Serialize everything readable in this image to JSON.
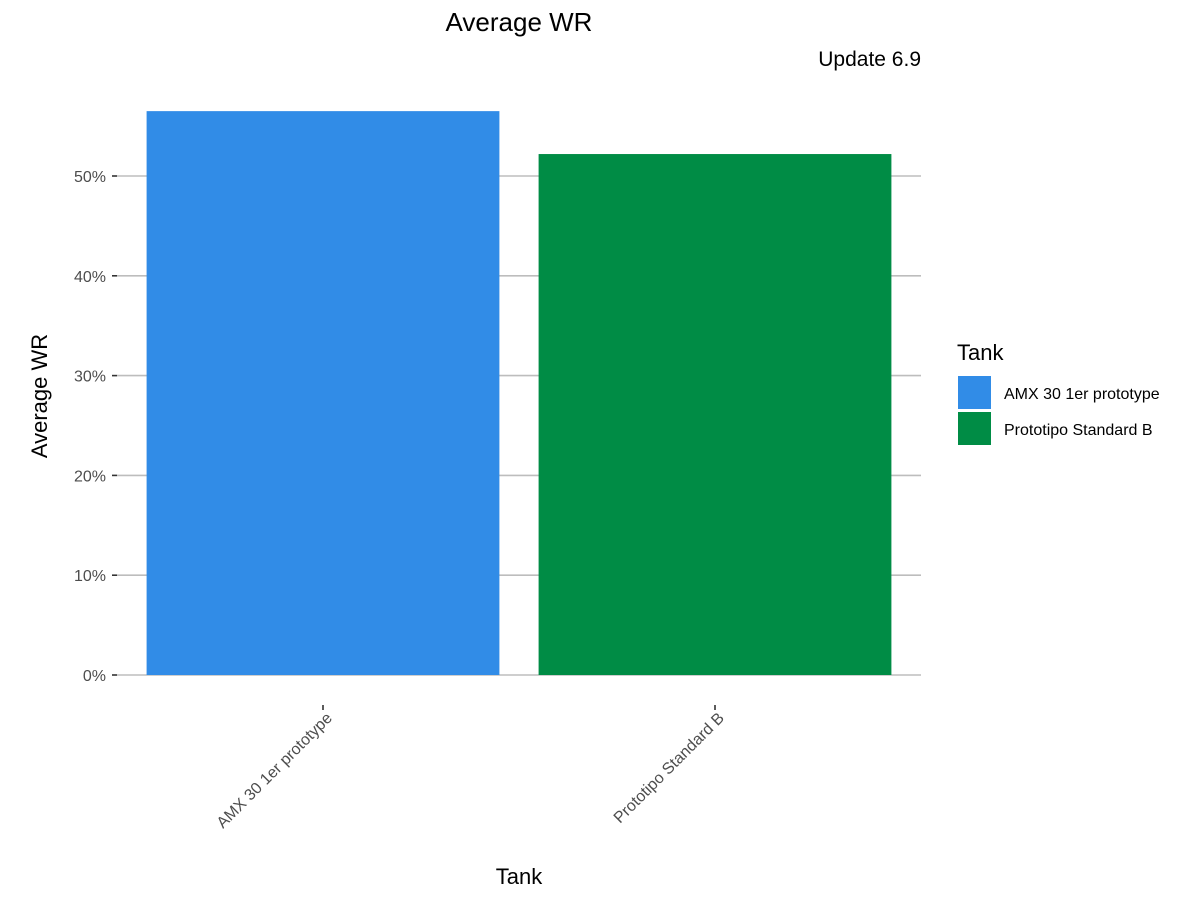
{
  "chart_data": {
    "type": "bar",
    "title": "Average WR",
    "subtitle": "Update 6.9",
    "xlabel": "Tank",
    "ylabel": "Average WR",
    "categories": [
      "AMX 30 1er prototype",
      "Prototipo Standard B"
    ],
    "values": [
      56.5,
      52.2
    ],
    "colors": [
      "#318ce7",
      "#008c45"
    ],
    "y_ticks": [
      0,
      10,
      20,
      30,
      40,
      50
    ],
    "y_tick_labels": [
      "0%",
      "10%",
      "20%",
      "30%",
      "40%",
      "50%"
    ],
    "ylim": [
      0,
      58
    ],
    "grid": true,
    "legend": {
      "title": "Tank",
      "placement": "right",
      "entries": [
        "AMX 30 1er prototype",
        "Prototipo Standard B"
      ]
    }
  }
}
